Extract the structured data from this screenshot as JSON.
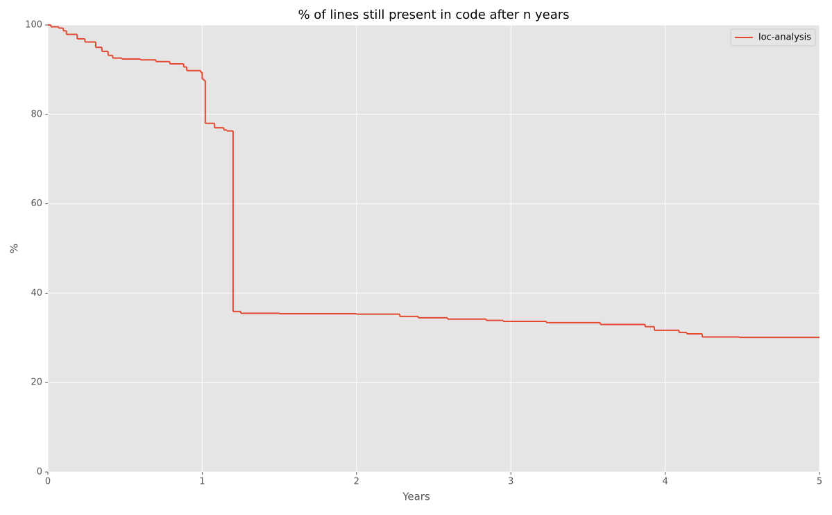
{
  "chart_data": {
    "type": "line",
    "title": "% of lines still present in code after n years",
    "xlabel": "Years",
    "ylabel": "%",
    "drawstyle": "steps-post",
    "x": [
      0,
      0.02,
      0.07,
      0.1,
      0.12,
      0.19,
      0.24,
      0.31,
      0.35,
      0.39,
      0.42,
      0.48,
      0.6,
      0.7,
      0.79,
      0.88,
      0.9,
      0.99,
      1.0,
      1.01,
      1.02,
      1.08,
      1.14,
      1.16,
      1.2,
      1.25,
      1.5,
      2.0,
      2.28,
      2.4,
      2.59,
      2.84,
      2.95,
      3.23,
      3.58,
      3.87,
      3.93,
      4.09,
      4.14,
      4.24,
      4.48,
      5.0
    ],
    "series": [
      {
        "name": "loc-analysis",
        "color": "#e24a33",
        "values": [
          100,
          99.6,
          99.3,
          98.7,
          97.9,
          96.9,
          96.2,
          95.0,
          94.1,
          93.2,
          92.6,
          92.4,
          92.2,
          91.8,
          91.3,
          90.6,
          89.8,
          89.4,
          87.9,
          87.6,
          78.0,
          77.0,
          76.5,
          76.3,
          35.9,
          35.5,
          35.4,
          35.3,
          34.8,
          34.5,
          34.2,
          33.9,
          33.7,
          33.4,
          33.0,
          32.5,
          31.7,
          31.2,
          30.9,
          30.2,
          30.1,
          30.1
        ]
      }
    ],
    "xlim": [
      0,
      5
    ],
    "xticks": [
      0,
      1,
      2,
      3,
      4,
      5
    ],
    "ylim": [
      0,
      100
    ],
    "yticks": [
      0,
      20,
      40,
      60,
      80,
      100
    ],
    "grid": true,
    "legend": "upper right"
  }
}
